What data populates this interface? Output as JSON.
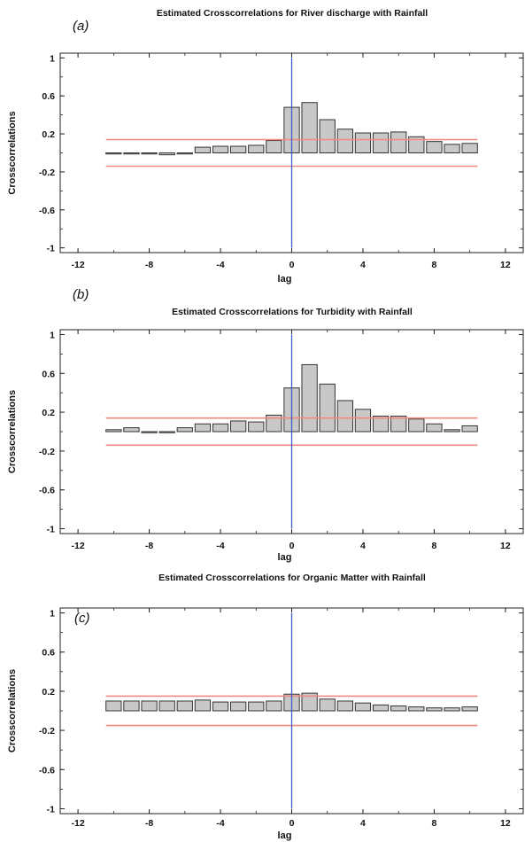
{
  "chart_data": [
    {
      "type": "bar",
      "panel_label": "(a)",
      "title": "Estimated Crosscorrelations for River discharge with Rainfall",
      "xlabel": "lag",
      "ylabel": "Crosscorrelations",
      "xlim": [
        -13,
        13
      ],
      "ylim": [
        -1.05,
        1.05
      ],
      "xticks": [
        -12,
        -8,
        -4,
        0,
        4,
        8,
        12
      ],
      "yticks": [
        1,
        0.6,
        0.2,
        -0.2,
        -0.6,
        -1
      ],
      "ytick_labels": [
        "1",
        "0.6",
        "0.2",
        "-0.2",
        "-0.6",
        "-1"
      ],
      "lags": [
        -10,
        -9,
        -8,
        -7,
        -6,
        -5,
        -4,
        -3,
        -2,
        -1,
        0,
        1,
        2,
        3,
        4,
        5,
        6,
        7,
        8,
        9,
        10
      ],
      "values": [
        0.0,
        0.0,
        -0.01,
        -0.02,
        0.0,
        0.06,
        0.07,
        0.07,
        0.08,
        0.13,
        0.48,
        0.53,
        0.35,
        0.25,
        0.21,
        0.21,
        0.22,
        0.17,
        0.12,
        0.09,
        0.1
      ],
      "confidence_limits": [
        0.14,
        -0.14
      ],
      "colors": {
        "bar_fill": "#c8c8c8",
        "bar_edge": "#333333",
        "limit_line": "#f08a80",
        "zero_line": "#3a5fcd"
      }
    },
    {
      "type": "bar",
      "panel_label": "(b)",
      "title": "Estimated Crosscorrelations for Turbidity with Rainfall",
      "xlabel": "lag",
      "ylabel": "Crosscorrelations",
      "xlim": [
        -13,
        13
      ],
      "ylim": [
        -1.05,
        1.05
      ],
      "xticks": [
        -12,
        -8,
        -4,
        0,
        4,
        8,
        12
      ],
      "yticks": [
        1,
        0.6,
        0.2,
        -0.2,
        -0.6,
        -1
      ],
      "ytick_labels": [
        "1",
        "0.6",
        "0.2",
        "-0.2",
        "-0.6",
        "-1"
      ],
      "lags": [
        -10,
        -9,
        -8,
        -7,
        -6,
        -5,
        -4,
        -3,
        -2,
        -1,
        0,
        1,
        2,
        3,
        4,
        5,
        6,
        7,
        8,
        9,
        10
      ],
      "values": [
        0.02,
        0.04,
        0.0,
        0.0,
        0.04,
        0.08,
        0.08,
        0.11,
        0.1,
        0.17,
        0.45,
        0.69,
        0.49,
        0.32,
        0.23,
        0.16,
        0.16,
        0.13,
        0.08,
        0.02,
        0.06
      ],
      "confidence_limits": [
        0.14,
        -0.14
      ],
      "colors": {
        "bar_fill": "#c8c8c8",
        "bar_edge": "#333333",
        "limit_line": "#f08a80",
        "zero_line": "#3a5fcd"
      }
    },
    {
      "type": "bar",
      "panel_label": "(c)",
      "title": "Estimated Crosscorrelations for Organic Matter with Rainfall",
      "xlabel": "lag",
      "ylabel": "Crosscorrelations",
      "xlim": [
        -13,
        13
      ],
      "ylim": [
        -1.05,
        1.05
      ],
      "xticks": [
        -12,
        -8,
        -4,
        0,
        4,
        8,
        12
      ],
      "yticks": [
        1,
        0.6,
        0.2,
        -0.2,
        -0.6,
        -1
      ],
      "ytick_labels": [
        "1",
        "0.6",
        "0.2",
        "-0.2",
        "-0.6",
        "-1"
      ],
      "lags": [
        -10,
        -9,
        -8,
        -7,
        -6,
        -5,
        -4,
        -3,
        -2,
        -1,
        0,
        1,
        2,
        3,
        4,
        5,
        6,
        7,
        8,
        9,
        10
      ],
      "values": [
        0.1,
        0.1,
        0.1,
        0.1,
        0.1,
        0.11,
        0.09,
        0.09,
        0.09,
        0.1,
        0.17,
        0.18,
        0.12,
        0.1,
        0.08,
        0.06,
        0.05,
        0.04,
        0.03,
        0.03,
        0.04
      ],
      "confidence_limits": [
        0.15,
        -0.15
      ],
      "colors": {
        "bar_fill": "#c8c8c8",
        "bar_edge": "#333333",
        "limit_line": "#f08a80",
        "zero_line": "#3a5fcd"
      }
    }
  ]
}
